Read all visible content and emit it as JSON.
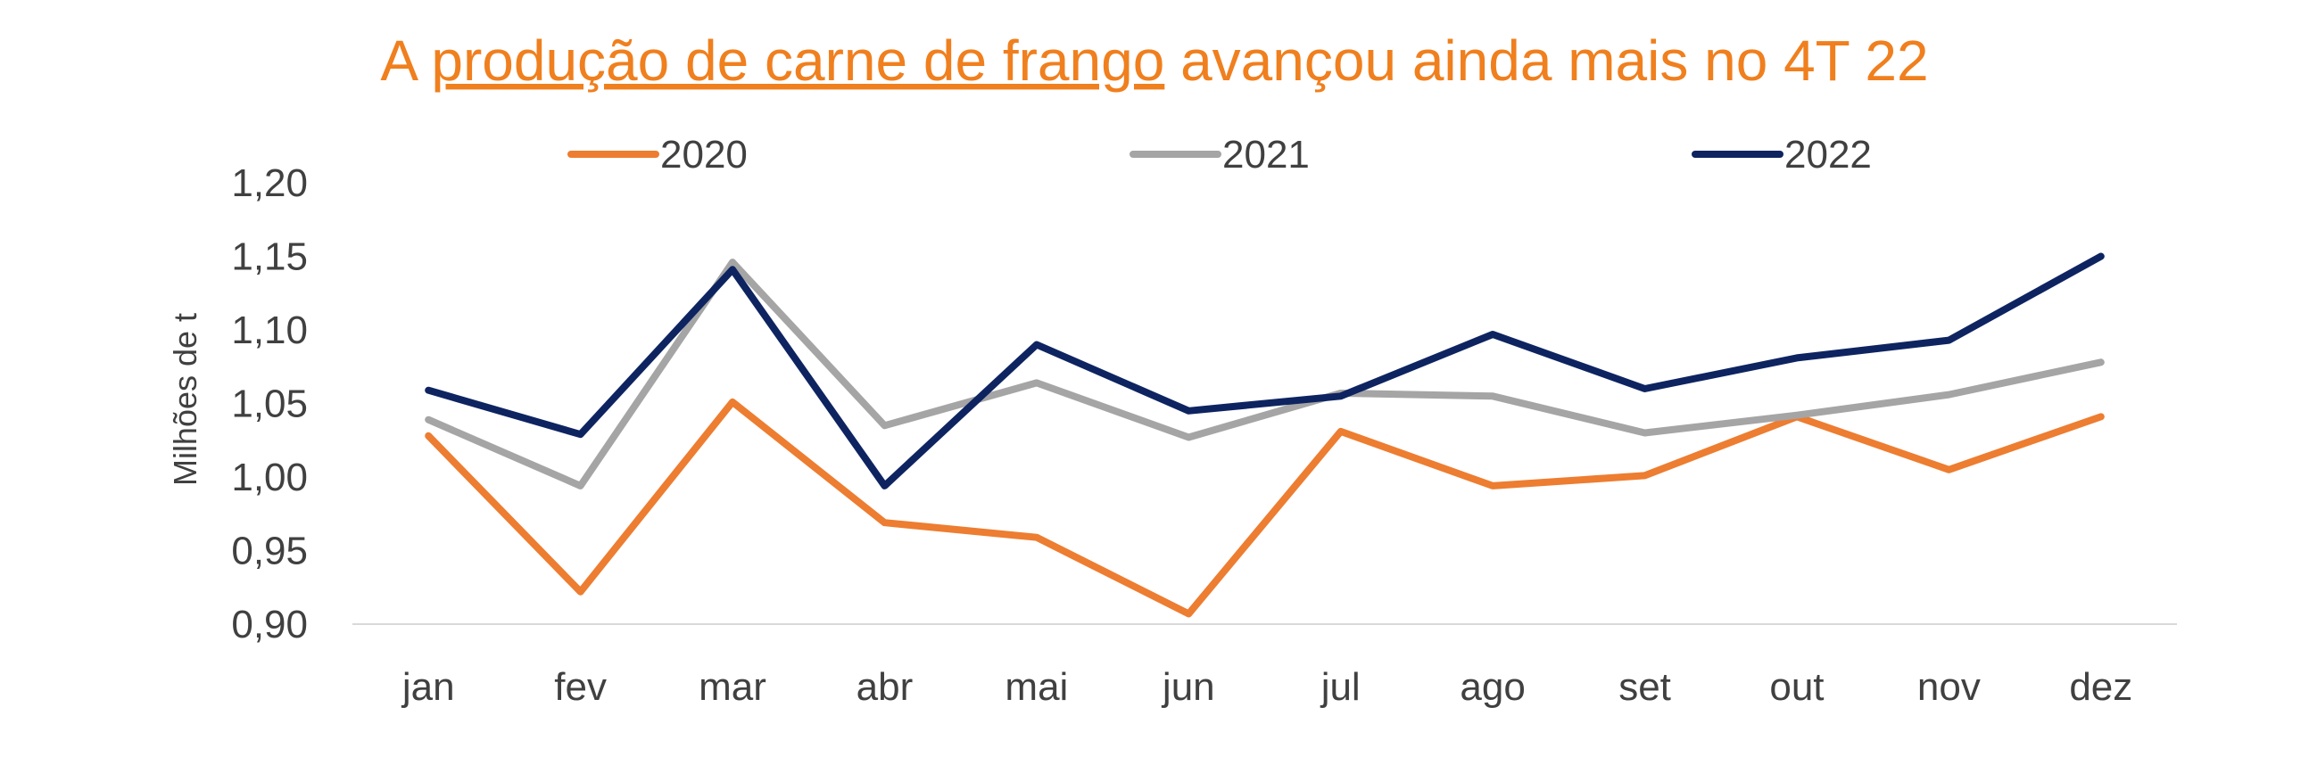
{
  "chart_data": {
    "type": "line",
    "title_parts": [
      "A ",
      "produção de carne de frango",
      " avançou ainda mais no 4T 22"
    ],
    "title_color": "#F07F1E",
    "ylabel": "Milhões de t",
    "xlabel": "",
    "categories": [
      "jan",
      "fev",
      "mar",
      "abr",
      "mai",
      "jun",
      "jul",
      "ago",
      "set",
      "out",
      "nov",
      "dez"
    ],
    "ylim": [
      0.9,
      1.2
    ],
    "yticks": [
      "1,20",
      "1,15",
      "1,10",
      "1,05",
      "1,00",
      "0,95",
      "0,90"
    ],
    "ytick_values": [
      1.2,
      1.15,
      1.1,
      1.05,
      1.0,
      0.95,
      0.9
    ],
    "grid": false,
    "legend_position": "top",
    "series": [
      {
        "name": "2020",
        "color": "#ED7D31",
        "values": [
          1.028,
          0.922,
          1.051,
          0.969,
          0.959,
          0.907,
          1.031,
          0.994,
          1.001,
          1.041,
          1.005,
          1.041
        ]
      },
      {
        "name": "2021",
        "color": "#A5A5A5",
        "values": [
          1.039,
          0.994,
          1.146,
          1.035,
          1.064,
          1.027,
          1.057,
          1.055,
          1.03,
          1.042,
          1.056,
          1.078
        ]
      },
      {
        "name": "2022",
        "color": "#0E2461",
        "values": [
          1.059,
          1.029,
          1.141,
          0.994,
          1.09,
          1.045,
          1.055,
          1.097,
          1.06,
          1.081,
          1.093,
          1.15
        ]
      }
    ]
  }
}
